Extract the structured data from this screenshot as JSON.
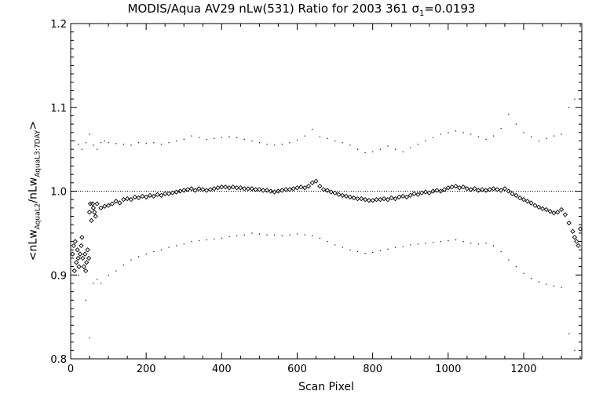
{
  "title": {
    "main": "MODIS/Aqua AV29 nLw(531) Ratio for 2003 361 ",
    "sigma": "σ",
    "sigma_sub": "1",
    "sigma_value": "=0.0193"
  },
  "xlabel": "Scan Pixel",
  "ylabel": {
    "prefix": "<nLw",
    "sub1": "AquaL2",
    "middle": "/nLw",
    "sub2": "AquaL3:7DAY",
    "suffix": ">"
  },
  "chart_data": {
    "type": "scatter",
    "xlim": [
      0,
      1354
    ],
    "ylim": [
      0.8,
      1.2
    ],
    "x_ticks": [
      0,
      200,
      400,
      600,
      800,
      1000,
      1200
    ],
    "y_ticks": [
      0.8,
      0.9,
      1.0,
      1.1,
      1.2
    ],
    "y_tick_labels": [
      "0.8",
      "0.9",
      "1.0",
      "1.1",
      "1.2"
    ],
    "reference_line": 1.0,
    "grid": false,
    "series": [
      {
        "role": "ratio",
        "marker": "diamond",
        "points": [
          [
            5,
            0.925
          ],
          [
            8,
            0.935
          ],
          [
            10,
            0.905
          ],
          [
            12,
            0.94
          ],
          [
            15,
            0.915
          ],
          [
            18,
            0.93
          ],
          [
            20,
            0.92
          ],
          [
            22,
            0.91
          ],
          [
            25,
            0.925
          ],
          [
            28,
            0.935
          ],
          [
            30,
            0.945
          ],
          [
            32,
            0.92
          ],
          [
            35,
            0.91
          ],
          [
            38,
            0.925
          ],
          [
            40,
            0.905
          ],
          [
            42,
            0.915
          ],
          [
            45,
            0.93
          ],
          [
            48,
            0.92
          ],
          [
            50,
            0.975
          ],
          [
            52,
            0.985
          ],
          [
            55,
            0.965
          ],
          [
            58,
            0.985
          ],
          [
            60,
            0.98
          ],
          [
            63,
            0.975
          ],
          [
            66,
            0.97
          ],
          [
            70,
            0.985
          ],
          [
            80,
            0.98
          ],
          [
            90,
            0.982
          ],
          [
            100,
            0.983
          ],
          [
            110,
            0.985
          ],
          [
            120,
            0.988
          ],
          [
            130,
            0.986
          ],
          [
            140,
            0.99
          ],
          [
            150,
            0.991
          ],
          [
            160,
            0.99
          ],
          [
            170,
            0.993
          ],
          [
            180,
            0.992
          ],
          [
            190,
            0.994
          ],
          [
            200,
            0.993
          ],
          [
            210,
            0.995
          ],
          [
            220,
            0.994
          ],
          [
            230,
            0.996
          ],
          [
            240,
            0.995
          ],
          [
            250,
            0.997
          ],
          [
            260,
            0.997
          ],
          [
            270,
            0.998
          ],
          [
            280,
            0.999
          ],
          [
            290,
            1.0
          ],
          [
            300,
            1.001
          ],
          [
            310,
            1.002
          ],
          [
            320,
            1.003
          ],
          [
            330,
            1.001
          ],
          [
            340,
            1.003
          ],
          [
            350,
            1.002
          ],
          [
            360,
            1.001
          ],
          [
            370,
            1.002
          ],
          [
            380,
            1.003
          ],
          [
            390,
            1.004
          ],
          [
            400,
            1.005
          ],
          [
            410,
            1.005
          ],
          [
            420,
            1.004
          ],
          [
            430,
            1.005
          ],
          [
            440,
            1.004
          ],
          [
            450,
            1.004
          ],
          [
            460,
            1.003
          ],
          [
            470,
            1.003
          ],
          [
            480,
            1.003
          ],
          [
            490,
            1.002
          ],
          [
            500,
            1.002
          ],
          [
            510,
            1.001
          ],
          [
            520,
            1.001
          ],
          [
            530,
            1.0
          ],
          [
            540,
            0.999
          ],
          [
            550,
            1.0
          ],
          [
            560,
            1.001
          ],
          [
            570,
            1.002
          ],
          [
            580,
            1.002
          ],
          [
            590,
            1.003
          ],
          [
            600,
            1.004
          ],
          [
            610,
            1.005
          ],
          [
            620,
            1.004
          ],
          [
            630,
            1.006
          ],
          [
            640,
            1.01
          ],
          [
            650,
            1.012
          ],
          [
            660,
            1.006
          ],
          [
            670,
            1.002
          ],
          [
            680,
            1.001
          ],
          [
            690,
            0.999
          ],
          [
            700,
            0.998
          ],
          [
            710,
            0.996
          ],
          [
            720,
            0.995
          ],
          [
            730,
            0.994
          ],
          [
            740,
            0.993
          ],
          [
            750,
            0.992
          ],
          [
            760,
            0.991
          ],
          [
            770,
            0.991
          ],
          [
            780,
            0.99
          ],
          [
            790,
            0.989
          ],
          [
            800,
            0.989
          ],
          [
            810,
            0.99
          ],
          [
            820,
            0.99
          ],
          [
            830,
            0.991
          ],
          [
            840,
            0.99
          ],
          [
            850,
            0.992
          ],
          [
            860,
            0.991
          ],
          [
            870,
            0.993
          ],
          [
            880,
            0.994
          ],
          [
            890,
            0.993
          ],
          [
            900,
            0.995
          ],
          [
            910,
            0.997
          ],
          [
            920,
            0.996
          ],
          [
            930,
            0.998
          ],
          [
            940,
            0.999
          ],
          [
            950,
            0.998
          ],
          [
            960,
            1.0
          ],
          [
            970,
            1.001
          ],
          [
            980,
            1.0
          ],
          [
            990,
            1.002
          ],
          [
            1000,
            1.004
          ],
          [
            1010,
            1.005
          ],
          [
            1020,
            1.006
          ],
          [
            1030,
            1.004
          ],
          [
            1040,
            1.005
          ],
          [
            1050,
            1.003
          ],
          [
            1060,
            1.002
          ],
          [
            1070,
            1.003
          ],
          [
            1080,
            1.001
          ],
          [
            1090,
            1.002
          ],
          [
            1100,
            1.001
          ],
          [
            1110,
            1.002
          ],
          [
            1120,
            1.003
          ],
          [
            1130,
            1.002
          ],
          [
            1140,
            1.001
          ],
          [
            1150,
            1.003
          ],
          [
            1160,
            1.0
          ],
          [
            1170,
            0.997
          ],
          [
            1180,
            0.995
          ],
          [
            1190,
            0.992
          ],
          [
            1200,
            0.99
          ],
          [
            1210,
            0.988
          ],
          [
            1220,
            0.986
          ],
          [
            1230,
            0.983
          ],
          [
            1240,
            0.981
          ],
          [
            1250,
            0.979
          ],
          [
            1260,
            0.978
          ],
          [
            1270,
            0.976
          ],
          [
            1280,
            0.974
          ],
          [
            1290,
            0.975
          ],
          [
            1300,
            0.978
          ],
          [
            1310,
            0.972
          ],
          [
            1320,
            0.962
          ],
          [
            1330,
            0.952
          ],
          [
            1335,
            0.945
          ],
          [
            1340,
            0.94
          ],
          [
            1345,
            0.935
          ],
          [
            1350,
            0.955
          ]
        ]
      },
      {
        "role": "upper-envelope",
        "marker": "dot",
        "points": [
          [
            10,
            1.06
          ],
          [
            20,
            1.056
          ],
          [
            30,
            1.05
          ],
          [
            40,
            1.058
          ],
          [
            50,
            1.068
          ],
          [
            60,
            1.055
          ],
          [
            70,
            1.05
          ],
          [
            80,
            1.058
          ],
          [
            90,
            1.06
          ],
          [
            100,
            1.058
          ],
          [
            120,
            1.057
          ],
          [
            140,
            1.056
          ],
          [
            160,
            1.055
          ],
          [
            180,
            1.058
          ],
          [
            200,
            1.057
          ],
          [
            220,
            1.058
          ],
          [
            240,
            1.056
          ],
          [
            260,
            1.058
          ],
          [
            280,
            1.06
          ],
          [
            300,
            1.062
          ],
          [
            320,
            1.066
          ],
          [
            340,
            1.064
          ],
          [
            360,
            1.062
          ],
          [
            380,
            1.063
          ],
          [
            400,
            1.064
          ],
          [
            420,
            1.065
          ],
          [
            440,
            1.064
          ],
          [
            460,
            1.062
          ],
          [
            480,
            1.06
          ],
          [
            500,
            1.058
          ],
          [
            520,
            1.056
          ],
          [
            540,
            1.055
          ],
          [
            560,
            1.056
          ],
          [
            580,
            1.058
          ],
          [
            600,
            1.061
          ],
          [
            620,
            1.066
          ],
          [
            640,
            1.074
          ],
          [
            660,
            1.065
          ],
          [
            680,
            1.063
          ],
          [
            700,
            1.06
          ],
          [
            720,
            1.058
          ],
          [
            740,
            1.055
          ],
          [
            760,
            1.05
          ],
          [
            780,
            1.046
          ],
          [
            800,
            1.047
          ],
          [
            820,
            1.05
          ],
          [
            840,
            1.054
          ],
          [
            860,
            1.05
          ],
          [
            880,
            1.047
          ],
          [
            900,
            1.052
          ],
          [
            920,
            1.056
          ],
          [
            940,
            1.06
          ],
          [
            960,
            1.064
          ],
          [
            980,
            1.068
          ],
          [
            1000,
            1.07
          ],
          [
            1020,
            1.072
          ],
          [
            1040,
            1.07
          ],
          [
            1060,
            1.068
          ],
          [
            1080,
            1.065
          ],
          [
            1100,
            1.062
          ],
          [
            1120,
            1.066
          ],
          [
            1140,
            1.075
          ],
          [
            1160,
            1.092
          ],
          [
            1180,
            1.08
          ],
          [
            1200,
            1.07
          ],
          [
            1220,
            1.065
          ],
          [
            1240,
            1.06
          ],
          [
            1260,
            1.063
          ],
          [
            1280,
            1.066
          ],
          [
            1300,
            1.068
          ],
          [
            1320,
            1.1
          ],
          [
            1335,
            1.11
          ],
          [
            1345,
            1.12
          ]
        ]
      },
      {
        "role": "lower-envelope",
        "marker": "dot",
        "points": [
          [
            20,
            0.9
          ],
          [
            40,
            0.87
          ],
          [
            50,
            0.825
          ],
          [
            60,
            0.89
          ],
          [
            70,
            0.895
          ],
          [
            80,
            0.89
          ],
          [
            100,
            0.9
          ],
          [
            120,
            0.905
          ],
          [
            140,
            0.912
          ],
          [
            160,
            0.918
          ],
          [
            180,
            0.922
          ],
          [
            200,
            0.925
          ],
          [
            220,
            0.928
          ],
          [
            240,
            0.93
          ],
          [
            260,
            0.933
          ],
          [
            280,
            0.935
          ],
          [
            300,
            0.937
          ],
          [
            320,
            0.94
          ],
          [
            340,
            0.941
          ],
          [
            360,
            0.942
          ],
          [
            380,
            0.943
          ],
          [
            400,
            0.944
          ],
          [
            420,
            0.946
          ],
          [
            440,
            0.947
          ],
          [
            460,
            0.948
          ],
          [
            480,
            0.95
          ],
          [
            500,
            0.949
          ],
          [
            520,
            0.948
          ],
          [
            540,
            0.948
          ],
          [
            560,
            0.947
          ],
          [
            580,
            0.948
          ],
          [
            600,
            0.949
          ],
          [
            620,
            0.948
          ],
          [
            640,
            0.947
          ],
          [
            660,
            0.944
          ],
          [
            680,
            0.94
          ],
          [
            700,
            0.936
          ],
          [
            720,
            0.933
          ],
          [
            740,
            0.93
          ],
          [
            760,
            0.928
          ],
          [
            780,
            0.926
          ],
          [
            800,
            0.927
          ],
          [
            820,
            0.929
          ],
          [
            840,
            0.931
          ],
          [
            860,
            0.933
          ],
          [
            880,
            0.934
          ],
          [
            900,
            0.936
          ],
          [
            920,
            0.937
          ],
          [
            940,
            0.938
          ],
          [
            960,
            0.939
          ],
          [
            980,
            0.94
          ],
          [
            1000,
            0.941
          ],
          [
            1020,
            0.942
          ],
          [
            1040,
            0.94
          ],
          [
            1060,
            0.938
          ],
          [
            1080,
            0.937
          ],
          [
            1100,
            0.938
          ],
          [
            1120,
            0.935
          ],
          [
            1140,
            0.928
          ],
          [
            1160,
            0.918
          ],
          [
            1180,
            0.91
          ],
          [
            1200,
            0.902
          ],
          [
            1220,
            0.896
          ],
          [
            1240,
            0.892
          ],
          [
            1260,
            0.889
          ],
          [
            1280,
            0.887
          ],
          [
            1300,
            0.885
          ],
          [
            1320,
            0.83
          ],
          [
            1335,
            0.81
          ],
          [
            1345,
            0.8
          ]
        ]
      }
    ]
  }
}
